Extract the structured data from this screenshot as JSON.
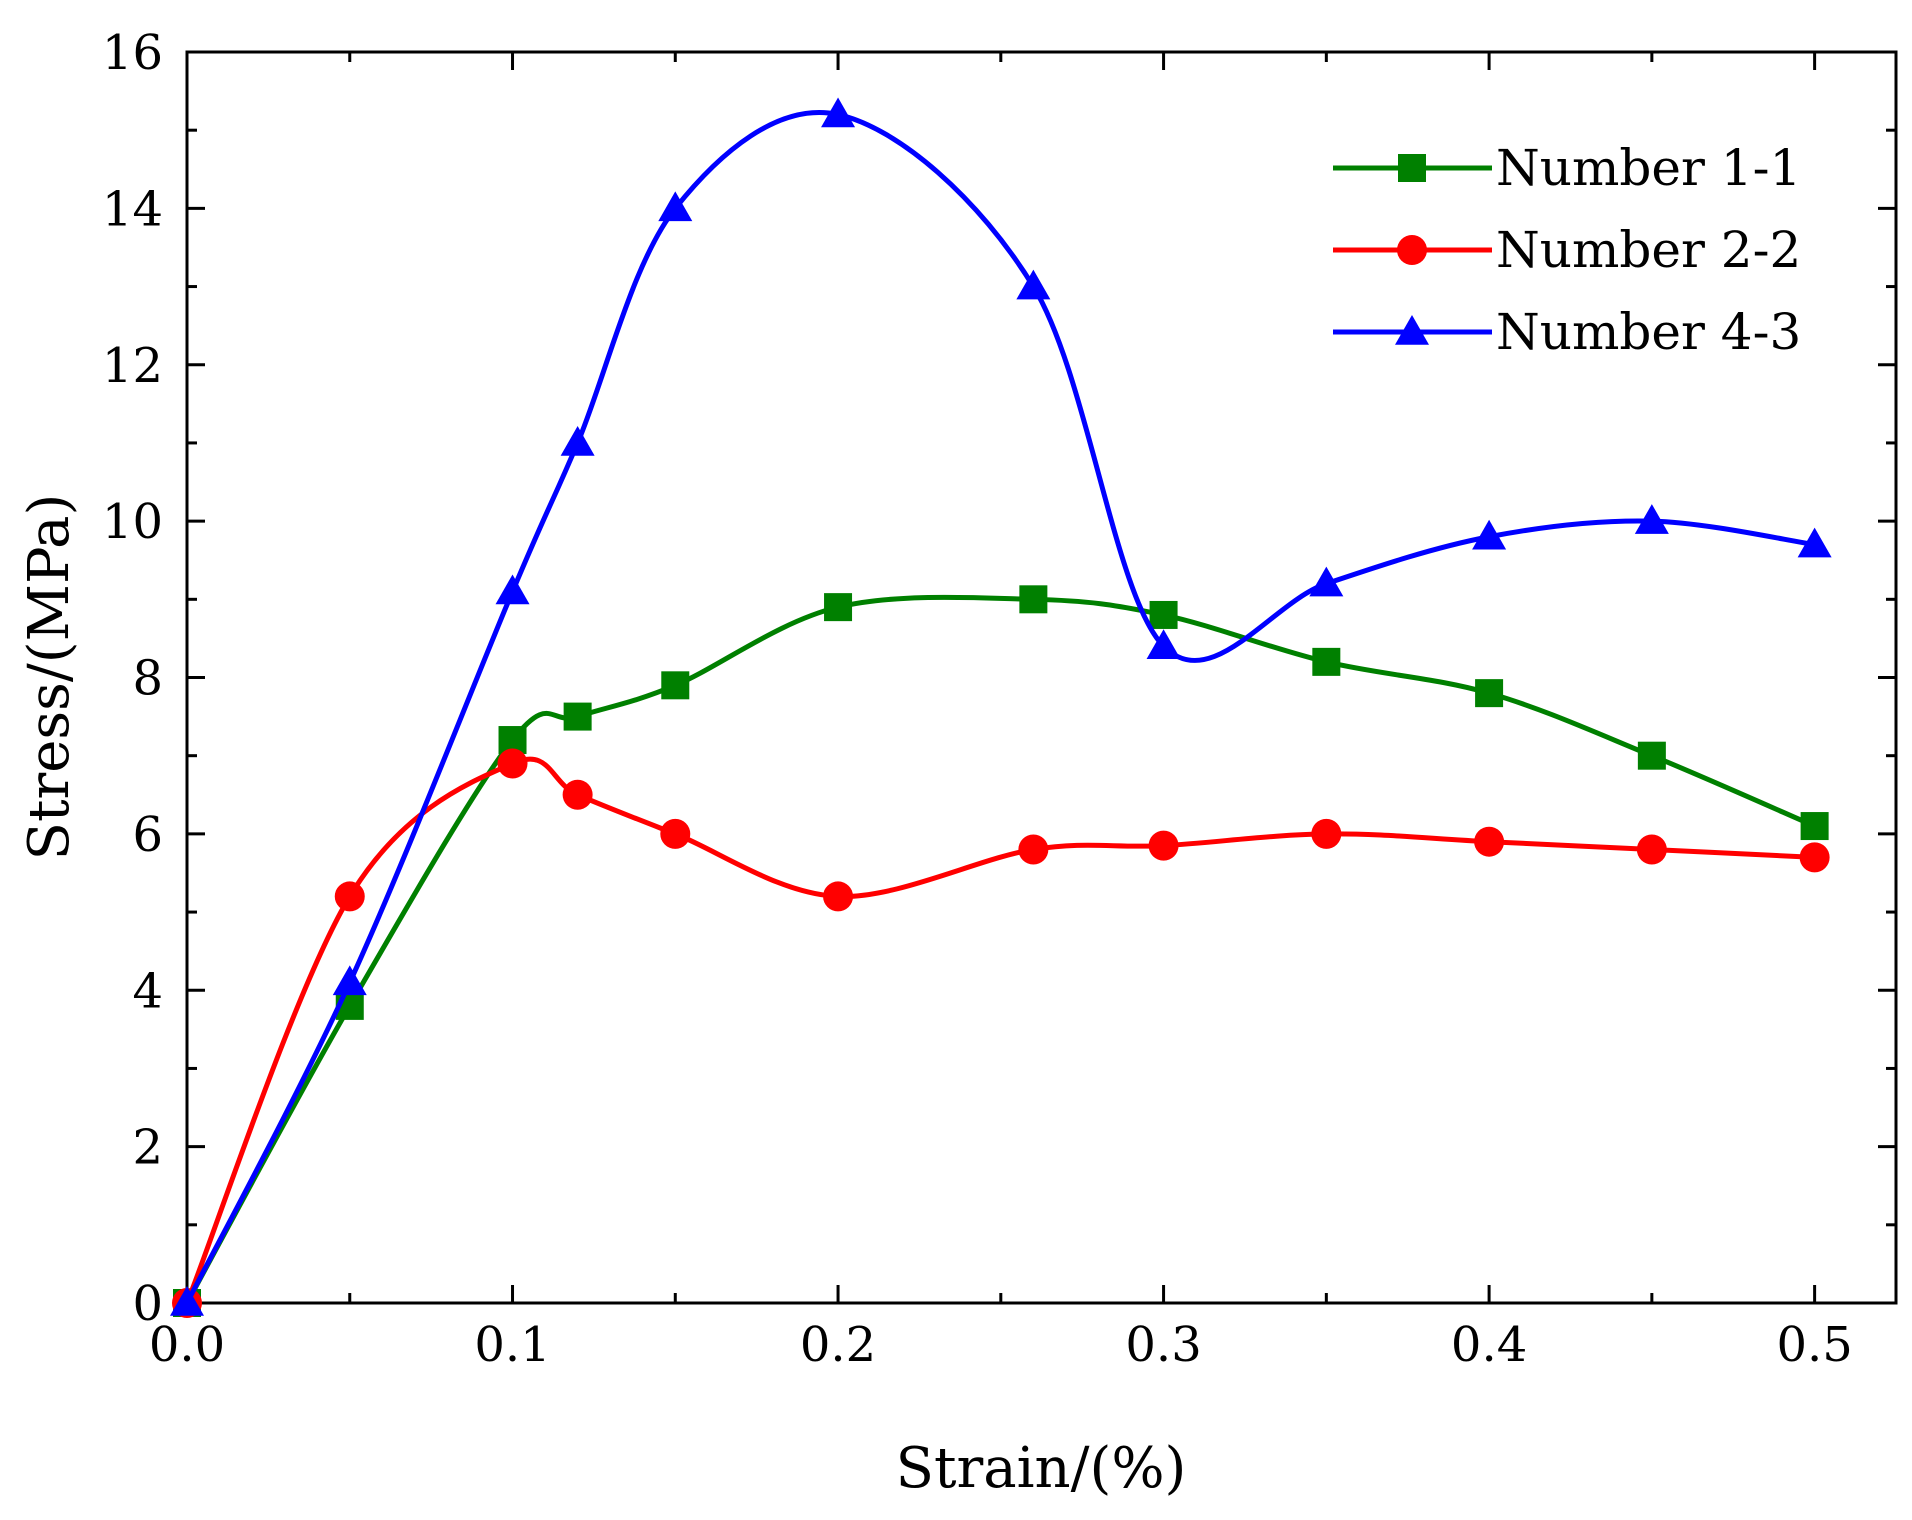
{
  "chart_data": {
    "type": "line",
    "title": "",
    "xlabel": "Strain/(%)",
    "ylabel": "Stress/(MPa)",
    "xlim": [
      0.0,
      0.525
    ],
    "ylim": [
      0,
      16
    ],
    "xticks": [
      0.0,
      0.1,
      0.2,
      0.3,
      0.4,
      0.5
    ],
    "xtick_labels": [
      "0.0",
      "0.1",
      "0.2",
      "0.3",
      "0.4",
      "0.5"
    ],
    "yticks": [
      0,
      2,
      4,
      6,
      8,
      10,
      12,
      14,
      16
    ],
    "ytick_labels": [
      "0",
      "2",
      "4",
      "6",
      "8",
      "10",
      "12",
      "14",
      "16"
    ],
    "grid": false,
    "legend_position": "top-right",
    "series": [
      {
        "name": "Number 1-1",
        "color": "#008000",
        "marker": "square",
        "x": [
          0.0,
          0.05,
          0.1,
          0.12,
          0.15,
          0.2,
          0.26,
          0.3,
          0.35,
          0.4,
          0.45,
          0.5
        ],
        "y": [
          0.0,
          3.8,
          7.2,
          7.5,
          7.9,
          8.9,
          9.0,
          8.8,
          8.2,
          7.8,
          7.0,
          6.1
        ]
      },
      {
        "name": "Number 2-2",
        "color": "#ff0000",
        "marker": "circle",
        "x": [
          0.0,
          0.05,
          0.1,
          0.12,
          0.15,
          0.2,
          0.26,
          0.3,
          0.35,
          0.4,
          0.45,
          0.5
        ],
        "y": [
          0.0,
          5.2,
          6.9,
          6.5,
          6.0,
          5.2,
          5.8,
          5.85,
          6.0,
          5.9,
          5.8,
          5.7
        ]
      },
      {
        "name": "Number 4-3",
        "color": "#0000ff",
        "marker": "triangle",
        "x": [
          0.0,
          0.05,
          0.1,
          0.12,
          0.15,
          0.2,
          0.26,
          0.3,
          0.35,
          0.4,
          0.45,
          0.5
        ],
        "y": [
          0.0,
          4.1,
          9.1,
          11.0,
          14.0,
          15.2,
          13.0,
          8.4,
          9.2,
          9.8,
          10.0,
          9.7
        ]
      }
    ]
  }
}
